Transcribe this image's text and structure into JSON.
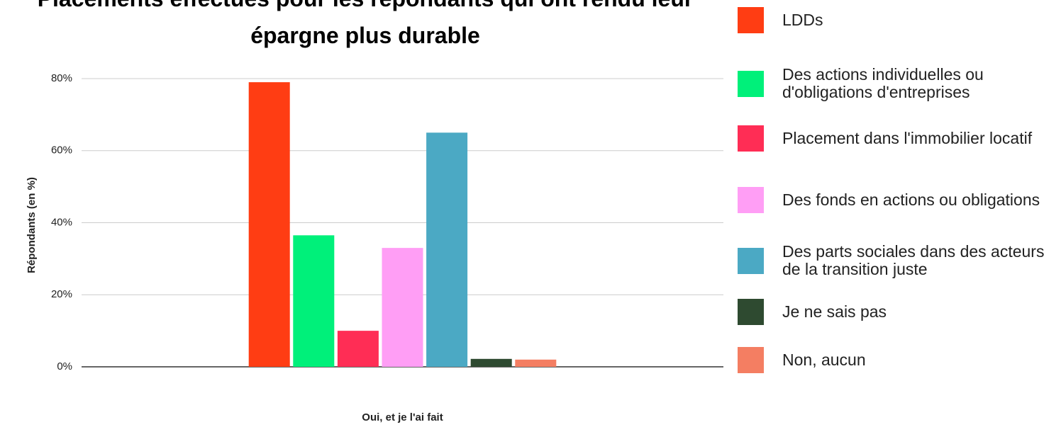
{
  "chart_data": {
    "type": "bar",
    "title": "Placements effectués pour les répondants qui ont rendu leur épargne plus durable",
    "y_label": "Répondants (en %)",
    "categories": [
      "Oui, et je l'ai fait"
    ],
    "series": [
      {
        "name": "LDDs",
        "color": "#ff3d13",
        "values": [
          79
        ]
      },
      {
        "name": "Des actions individuelles ou d'obligations d'entreprises",
        "color": "#00f07a",
        "values": [
          36.5
        ]
      },
      {
        "name": "Placement dans l'immobilier locatif",
        "color": "#ff2d55",
        "values": [
          10
        ]
      },
      {
        "name": "Des fonds en actions  ou obligations",
        "color": "#ff9ef5",
        "values": [
          33
        ]
      },
      {
        "name": "Des parts sociales dans des acteurs de la transition juste",
        "color": "#4ba9c4",
        "values": [
          65
        ]
      },
      {
        "name": "Je ne sais pas",
        "color": "#2e4a30",
        "values": [
          2.2
        ]
      },
      {
        "name": "Non, aucun",
        "color": "#f47e62",
        "values": [
          2
        ]
      }
    ],
    "ylim": [
      0,
      80
    ],
    "yticks": [
      {
        "value": 0,
        "label": "0%"
      },
      {
        "value": 20,
        "label": "20%"
      },
      {
        "value": 40,
        "label": "40%"
      },
      {
        "value": 60,
        "label": "60%"
      },
      {
        "value": 80,
        "label": "80%"
      }
    ],
    "grid": true,
    "legend": "right"
  }
}
